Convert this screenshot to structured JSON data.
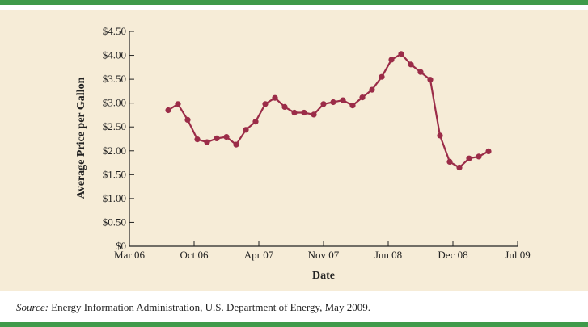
{
  "colors": {
    "border": "#3f9a4a",
    "panel_background": "#f6ecd7",
    "series_line": "#9b2c48"
  },
  "source": {
    "label": "Source:",
    "text": "Energy Information Administration, U.S. Department of Energy, May 2009."
  },
  "chart_data": {
    "type": "line",
    "xlabel": "Date",
    "ylabel": "Average Price per Gallon",
    "x_ticks": [
      "Mar 06",
      "Oct 06",
      "Apr 07",
      "Nov 07",
      "Jun 08",
      "Dec 08",
      "Jul 09"
    ],
    "y_ticks": [
      "$0",
      "$0.50",
      "$1.00",
      "$1.50",
      "$2.00",
      "$2.50",
      "$3.00",
      "$3.50",
      "$4.00",
      "$4.50"
    ],
    "ylim": [
      0,
      4.5
    ],
    "x_unit": "month",
    "x_range": [
      "2006-03",
      "2009-07"
    ],
    "grid": false,
    "series": [
      {
        "x": [
          "2006-07",
          "2006-08",
          "2006-09",
          "2006-10",
          "2006-11",
          "2006-12",
          "2007-01",
          "2007-02",
          "2007-03",
          "2007-04",
          "2007-05",
          "2007-06",
          "2007-07",
          "2007-08",
          "2007-09",
          "2007-10",
          "2007-11",
          "2007-12",
          "2008-01",
          "2008-02",
          "2008-03",
          "2008-04",
          "2008-05",
          "2008-06",
          "2008-07",
          "2008-08",
          "2008-09",
          "2008-10",
          "2008-11",
          "2008-12",
          "2009-01",
          "2009-02",
          "2009-03",
          "2009-04"
        ],
        "values": [
          2.85,
          2.98,
          2.65,
          2.24,
          2.18,
          2.26,
          2.29,
          2.13,
          2.44,
          2.61,
          2.98,
          3.11,
          2.92,
          2.8,
          2.8,
          2.76,
          2.98,
          3.02,
          3.06,
          2.95,
          3.12,
          3.28,
          3.55,
          3.91,
          4.03,
          3.81,
          3.65,
          3.49,
          2.32,
          1.77,
          1.65,
          1.84,
          1.88,
          1.99
        ]
      }
    ]
  }
}
